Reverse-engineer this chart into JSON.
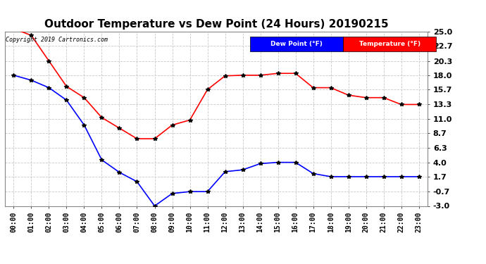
{
  "title": "Outdoor Temperature vs Dew Point (24 Hours) 20190215",
  "copyright": "Copyright 2019 Cartronics.com",
  "x_labels": [
    "00:00",
    "01:00",
    "02:00",
    "03:00",
    "04:00",
    "05:00",
    "06:00",
    "07:00",
    "08:00",
    "09:00",
    "10:00",
    "11:00",
    "12:00",
    "13:00",
    "14:00",
    "15:00",
    "16:00",
    "17:00",
    "18:00",
    "19:00",
    "20:00",
    "21:00",
    "22:00",
    "23:00"
  ],
  "temperature": [
    25.5,
    24.4,
    20.3,
    16.2,
    14.4,
    11.2,
    9.5,
    7.8,
    7.8,
    10.0,
    10.8,
    15.7,
    17.9,
    18.0,
    18.0,
    18.3,
    18.3,
    16.0,
    16.0,
    14.8,
    14.4,
    14.4,
    13.3,
    13.3
  ],
  "dew_point": [
    18.0,
    17.2,
    16.0,
    14.0,
    10.0,
    4.4,
    2.4,
    0.9,
    -3.0,
    -1.0,
    -0.7,
    -0.7,
    2.5,
    2.8,
    3.8,
    4.0,
    4.0,
    2.2,
    1.7,
    1.7,
    1.7,
    1.7,
    1.7,
    1.7
  ],
  "ylim_min": -3.0,
  "ylim_max": 25.0,
  "y_ticks": [
    25.0,
    22.7,
    20.3,
    18.0,
    15.7,
    13.3,
    11.0,
    8.7,
    6.3,
    4.0,
    1.7,
    -0.7,
    -3.0
  ],
  "temp_color": "#ff0000",
  "dew_color": "#0000ff",
  "marker_color": "#000000",
  "bg_color": "#ffffff",
  "grid_color": "#c8c8c8",
  "legend_dew_bg": "#0000ff",
  "legend_temp_bg": "#ff0000",
  "legend_text_color": "#ffffff",
  "title_fontsize": 11,
  "tick_fontsize": 7,
  "ytick_fontsize": 8
}
